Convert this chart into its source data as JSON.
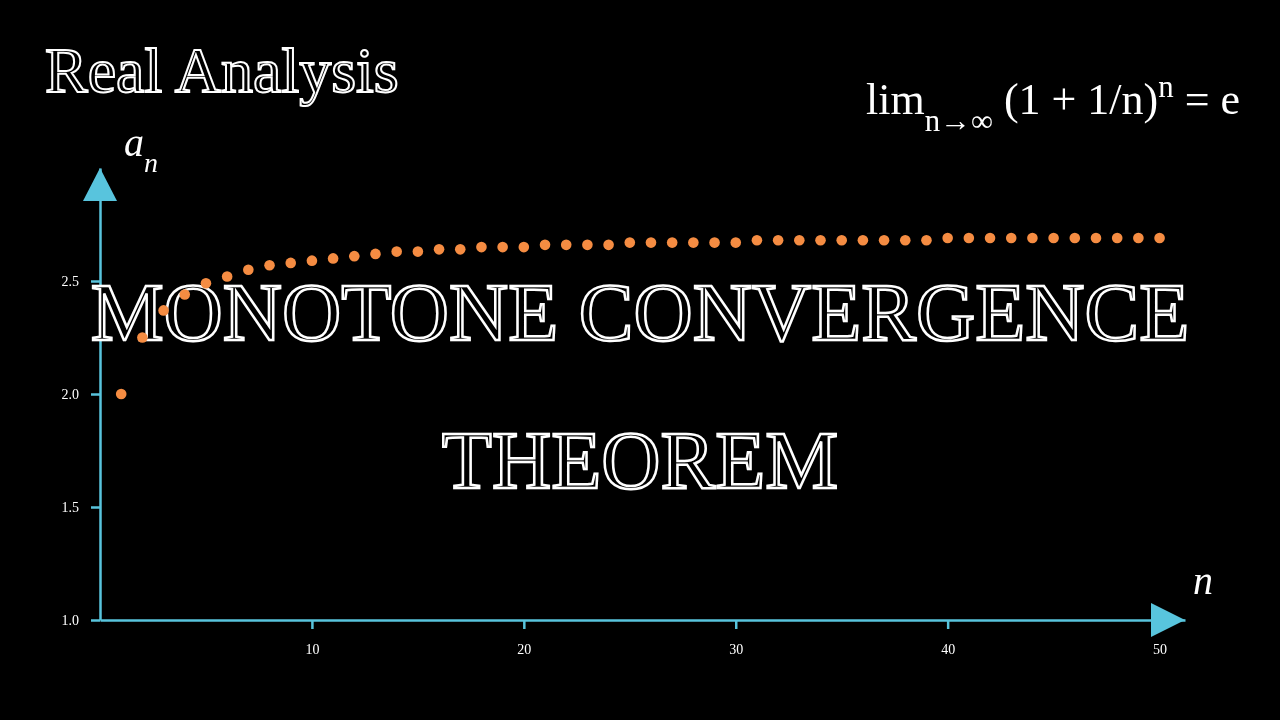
{
  "chart_data": {
    "type": "scatter",
    "title": "MONOTONE CONVERGENCE THEOREM",
    "subtitle": "Real Analysis",
    "xlabel": "n",
    "ylabel": "a$_{n}$",
    "annotations": [
      "lim$_{n→∞}$ (1 + 1/n)$^{n}$ = e"
    ],
    "x": [
      1,
      2,
      3,
      4,
      5,
      6,
      7,
      8,
      9,
      10,
      11,
      12,
      13,
      14,
      15,
      16,
      17,
      18,
      19,
      20,
      21,
      22,
      23,
      24,
      25,
      26,
      27,
      28,
      29,
      30,
      31,
      32,
      33,
      34,
      35,
      36,
      37,
      38,
      39,
      40,
      41,
      42,
      43,
      44,
      45,
      46,
      47,
      48,
      49,
      50
    ],
    "series": [
      {
        "color": "#f58c42",
        "values": [
          2.0,
          2.25,
          2.37,
          2.44,
          2.49,
          2.52,
          2.55,
          2.57,
          2.58,
          2.59,
          2.6,
          2.61,
          2.62,
          2.63,
          2.63,
          2.64,
          2.64,
          2.65,
          2.65,
          2.65,
          2.66,
          2.66,
          2.66,
          2.66,
          2.67,
          2.67,
          2.67,
          2.67,
          2.67,
          2.67,
          2.68,
          2.68,
          2.68,
          2.68,
          2.68,
          2.68,
          2.68,
          2.68,
          2.68,
          2.69,
          2.69,
          2.69,
          2.69,
          2.69,
          2.69,
          2.69,
          2.69,
          2.69,
          2.69,
          2.69
        ]
      }
    ],
    "xlim": [
      0,
      51.2
    ],
    "ylim": [
      1,
      3
    ],
    "xticks": [
      10,
      20,
      30,
      40,
      50
    ],
    "yticks": [
      {
        "value": 1,
        "label": "1.0"
      },
      {
        "value": 1.5,
        "label": "1.5"
      },
      {
        "value": 2,
        "label": "2.0"
      },
      {
        "value": 2.5,
        "label": "2.5"
      }
    ],
    "marker": "circle"
  }
}
